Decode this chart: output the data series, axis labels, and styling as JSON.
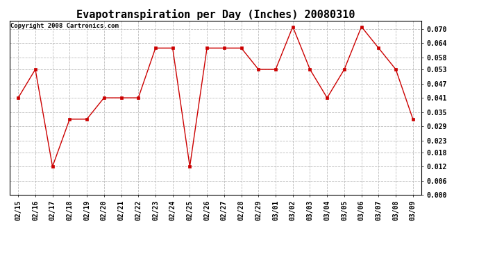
{
  "title": "Evapotranspiration per Day (Inches) 20080310",
  "copyright": "Copyright 2008 Cartronics.com",
  "x_labels": [
    "02/15",
    "02/16",
    "02/17",
    "02/18",
    "02/19",
    "02/20",
    "02/21",
    "02/22",
    "02/23",
    "02/24",
    "02/25",
    "02/26",
    "02/27",
    "02/28",
    "02/29",
    "03/01",
    "03/02",
    "03/03",
    "03/04",
    "03/05",
    "03/06",
    "03/07",
    "03/08",
    "03/09"
  ],
  "y_values": [
    0.041,
    0.053,
    0.012,
    0.032,
    0.032,
    0.041,
    0.041,
    0.041,
    0.062,
    0.062,
    0.012,
    0.062,
    0.062,
    0.062,
    0.053,
    0.053,
    0.071,
    0.053,
    0.041,
    0.053,
    0.071,
    0.062,
    0.053,
    0.032
  ],
  "y_ticks": [
    0.0,
    0.006,
    0.012,
    0.018,
    0.023,
    0.029,
    0.035,
    0.041,
    0.047,
    0.053,
    0.058,
    0.064,
    0.07
  ],
  "ylim": [
    0.0,
    0.0735
  ],
  "line_color": "#cc0000",
  "marker": "s",
  "marker_size": 2.5,
  "bg_color": "#ffffff",
  "grid_color": "#bbbbbb",
  "title_fontsize": 11,
  "tick_fontsize": 7,
  "copyright_fontsize": 6.5
}
